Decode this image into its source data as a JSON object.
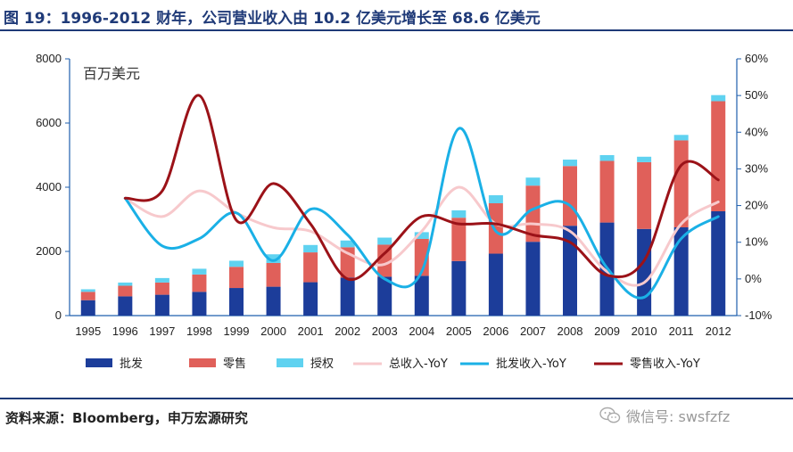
{
  "header": {
    "title": "图 19：1996-2012 财年，公司营业收入由 10.2 亿美元增长至 68.6 亿美元"
  },
  "footer": {
    "source": "资料来源：Bloomberg，申万宏源研究",
    "wechat": "微信号: swsfzfz"
  },
  "colors": {
    "wholesale": "#1c3d9a",
    "retail": "#e0605a",
    "license": "#5fd2f0",
    "total_yoy": "#f7c9cc",
    "wholesale_yoy": "#1ab0e6",
    "retail_yoy": "#9b1218",
    "axis": "#1f5fae",
    "brand": "#1f3a78"
  },
  "chart_data": {
    "type": "bar",
    "stacked": true,
    "unit_label": "百万美元",
    "categories": [
      "1995",
      "1996",
      "1997",
      "1998",
      "1999",
      "2000",
      "2001",
      "2002",
      "2003",
      "2004",
      "2005",
      "2006",
      "2007",
      "2008",
      "2009",
      "2010",
      "2011",
      "2012"
    ],
    "y_left": {
      "range": [
        0,
        8000
      ],
      "ticks": [
        "0",
        "2000",
        "4000",
        "6000",
        "8000"
      ]
    },
    "y_right": {
      "range": [
        -10,
        60
      ],
      "ticks": [
        "-10%",
        "0%",
        "10%",
        "20%",
        "30%",
        "40%",
        "50%",
        "60%"
      ]
    },
    "series": [
      {
        "name": "批发",
        "kind": "bar",
        "axis": "left",
        "values": [
          480,
          600,
          650,
          740,
          860,
          900,
          1040,
          1180,
          1210,
          1240,
          1700,
          1930,
          2300,
          2800,
          2900,
          2700,
          2750,
          3250
        ]
      },
      {
        "name": "零售",
        "kind": "bar",
        "axis": "left",
        "values": [
          260,
          330,
          380,
          540,
          660,
          740,
          930,
          950,
          1000,
          1150,
          1350,
          1570,
          1750,
          1860,
          1920,
          2080,
          2710,
          3430
        ]
      },
      {
        "name": "授权",
        "kind": "bar",
        "axis": "left",
        "values": [
          80,
          100,
          140,
          180,
          190,
          270,
          230,
          210,
          220,
          210,
          230,
          250,
          250,
          200,
          180,
          170,
          170,
          190
        ]
      },
      {
        "name": "总收入-YoY",
        "kind": "line",
        "axis": "right",
        "values": [
          null,
          22,
          17,
          24,
          18,
          14,
          13,
          7,
          4,
          13,
          25,
          15,
          15,
          13,
          2,
          -1,
          15,
          21
        ]
      },
      {
        "name": "批发收入-YoY",
        "kind": "line",
        "axis": "right",
        "values": [
          null,
          22,
          9,
          11,
          18,
          5,
          19,
          12,
          0,
          2,
          41,
          13,
          19,
          20,
          3,
          -5,
          11,
          17
        ]
      },
      {
        "name": "零售收入-YoY",
        "kind": "line",
        "axis": "right",
        "values": [
          null,
          22,
          24,
          50,
          16,
          26,
          15,
          0,
          7,
          17,
          15,
          15,
          12,
          10,
          1,
          5,
          31,
          27
        ]
      }
    ]
  }
}
